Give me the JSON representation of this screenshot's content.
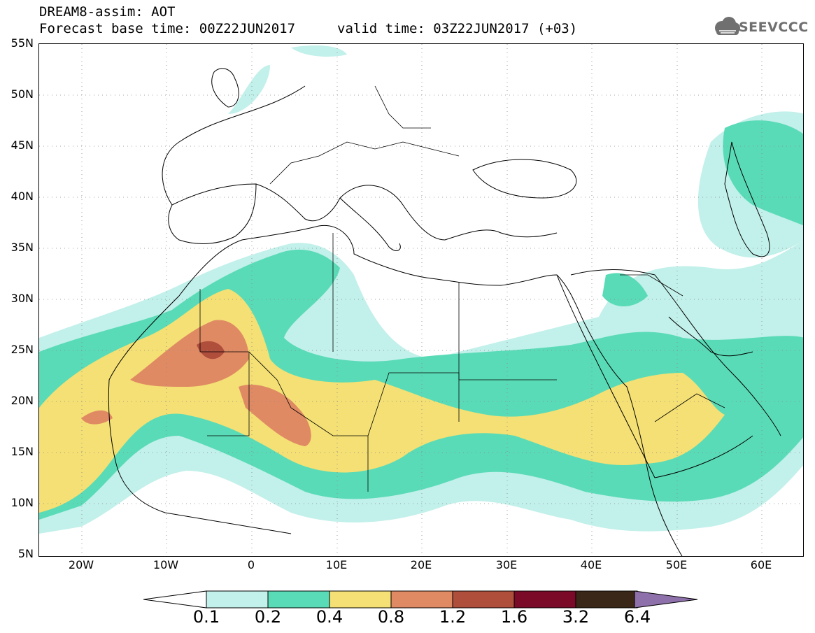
{
  "header": {
    "title": "DREAM8-assim: AOT",
    "base_time": "Forecast base time: 00Z22JUN2017",
    "valid_time": "valid time: 03Z22JUN2017 (+03)",
    "logo": "SEEVCCC"
  },
  "axes": {
    "lat_labels": [
      "55N",
      "50N",
      "45N",
      "40N",
      "35N",
      "30N",
      "25N",
      "20N",
      "15N",
      "10N",
      "5N"
    ],
    "lon_labels": [
      "20W",
      "10W",
      "0",
      "10E",
      "20E",
      "30E",
      "40E",
      "50E",
      "60E"
    ]
  },
  "colorbar": {
    "labels": [
      "0.1",
      "0.2",
      "0.4",
      "0.8",
      "1.2",
      "1.6",
      "3.2",
      "6.4"
    ],
    "colors": [
      "#c2f0ea",
      "#5adbb7",
      "#f4e074",
      "#e08a64",
      "#b04e3c",
      "#7a0a28",
      "#3b2718",
      "#8e70aa"
    ]
  },
  "map": {
    "extent_lon": [
      -25,
      65
    ],
    "extent_lat": [
      5,
      55
    ]
  }
}
